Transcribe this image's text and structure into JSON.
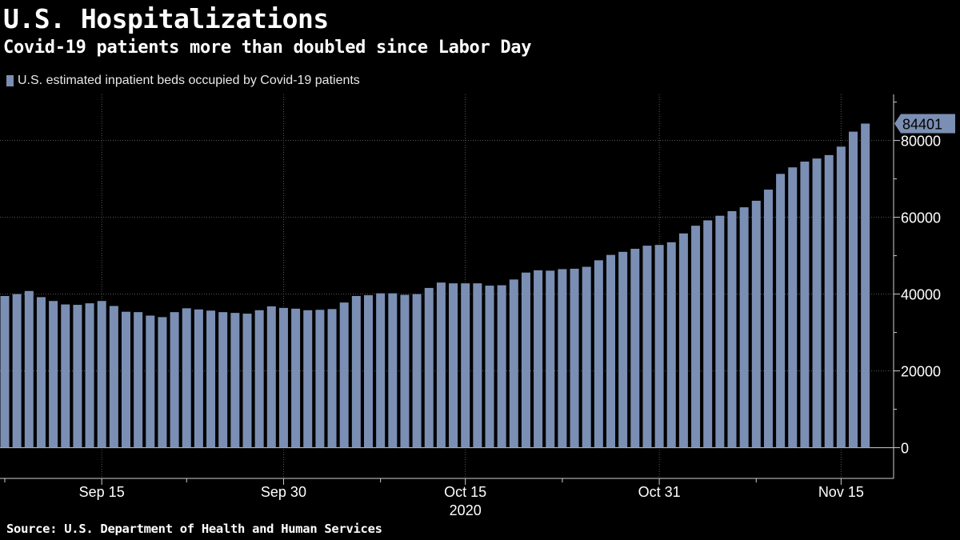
{
  "header": {
    "title": "U.S. Hospitalizations",
    "subtitle": "Covid-19 patients more than doubled since Labor Day"
  },
  "footer": {
    "source": "Source: U.S. Department of Health and Human Services"
  },
  "colors": {
    "background": "#000000",
    "bar": "#7b8fb4",
    "text": "#ffffff",
    "grid": "#5a5a5a"
  },
  "chart_data": {
    "type": "bar",
    "title": "U.S. Hospitalizations",
    "subtitle": "Covid-19 patients more than doubled since Labor Day",
    "year_label": "2020",
    "x_tick_labels": [
      "Sep 15",
      "Sep 30",
      "Oct 15",
      "Oct 31",
      "Nov 15"
    ],
    "ylim": [
      -8000,
      92000
    ],
    "y_ticks": [
      0,
      20000,
      40000,
      60000,
      80000
    ],
    "grid": true,
    "legend_position": "top-left",
    "last_value_label": "84401",
    "series": [
      {
        "name": "U.S. estimated inpatient beds occupied by Covid-19 patients",
        "values": [
          39500,
          40000,
          40800,
          39200,
          38200,
          37300,
          37200,
          37600,
          38200,
          36900,
          35400,
          35300,
          34400,
          34000,
          35300,
          36300,
          36000,
          35700,
          35300,
          35100,
          34900,
          35800,
          36800,
          36400,
          36200,
          35800,
          35900,
          36100,
          37800,
          39500,
          39700,
          40200,
          40200,
          39800,
          40000,
          41600,
          43000,
          42800,
          42800,
          42800,
          42200,
          42300,
          43800,
          45600,
          46200,
          46100,
          46500,
          46600,
          47100,
          48800,
          50200,
          51000,
          51800,
          52600,
          52800,
          53500,
          55800,
          57800,
          59200,
          60400,
          61600,
          62600,
          64300,
          67200,
          71300,
          73000,
          74500,
          75300,
          76200,
          78400,
          82300,
          84401
        ]
      }
    ]
  }
}
